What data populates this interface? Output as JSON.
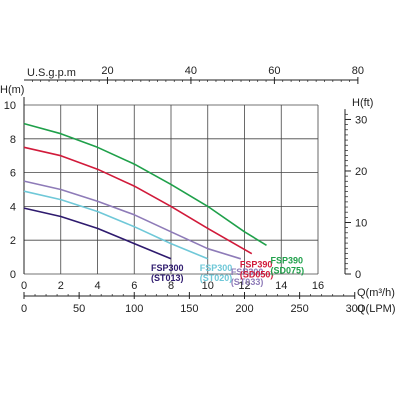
{
  "chart_data": {
    "type": "line",
    "title": "",
    "ylabel": "H(m)",
    "ylabel_right": "H(ft)",
    "xlabel": "Q(m³/h)",
    "xlabel_lpm": "Q(LPM)",
    "xlabel_usgpm": "U.S.g.p.m",
    "xlim": [
      0,
      16
    ],
    "ylim": [
      0,
      10
    ],
    "x_ticks": [
      0,
      2,
      4,
      6,
      8,
      10,
      12,
      14,
      16
    ],
    "y_ticks": [
      0,
      2,
      4,
      6,
      8,
      10
    ],
    "lpm_ticks": [
      0,
      50,
      100,
      150,
      200,
      250,
      300
    ],
    "usgpm_ticks": [
      20,
      40,
      60,
      80
    ],
    "ft_ticks": [
      0,
      10,
      20,
      30
    ],
    "grid": true,
    "series": [
      {
        "name": "FSP300 (ST013)",
        "label_lines": [
          "FSP300",
          "(ST013)"
        ],
        "color": "#2e1a6e",
        "x": [
          0,
          2,
          4,
          6,
          8
        ],
        "y": [
          3.9,
          3.4,
          2.7,
          1.8,
          0.9
        ]
      },
      {
        "name": "FSP300 (ST020)",
        "label_lines": [
          "FSP300",
          "(ST020)"
        ],
        "color": "#6fc8d8",
        "x": [
          0,
          2,
          4,
          6,
          8,
          10
        ],
        "y": [
          4.9,
          4.4,
          3.7,
          2.8,
          1.8,
          0.9
        ]
      },
      {
        "name": "FSP300 (ST033)",
        "label_lines": [
          "FSP300",
          "(ST033)"
        ],
        "color": "#8e7bb8",
        "x": [
          0,
          2,
          4,
          6,
          8,
          10,
          11.8
        ],
        "y": [
          5.5,
          5.0,
          4.3,
          3.5,
          2.5,
          1.5,
          0.9
        ]
      },
      {
        "name": "FSP390 (SD050)",
        "label_lines": [
          "FSP390",
          "(SD050)"
        ],
        "color": "#d11a3a",
        "x": [
          0,
          2,
          4,
          6,
          8,
          10,
          12.4
        ],
        "y": [
          7.5,
          7.0,
          6.2,
          5.2,
          4.0,
          2.7,
          1.2
        ]
      },
      {
        "name": "FSP390 (SD075)",
        "label_lines": [
          "FSP390",
          "(SD075)"
        ],
        "color": "#1fa04a",
        "x": [
          0,
          2,
          4,
          6,
          8,
          10,
          12,
          13.2
        ],
        "y": [
          8.9,
          8.3,
          7.5,
          6.5,
          5.3,
          4.0,
          2.5,
          1.7
        ]
      }
    ]
  }
}
